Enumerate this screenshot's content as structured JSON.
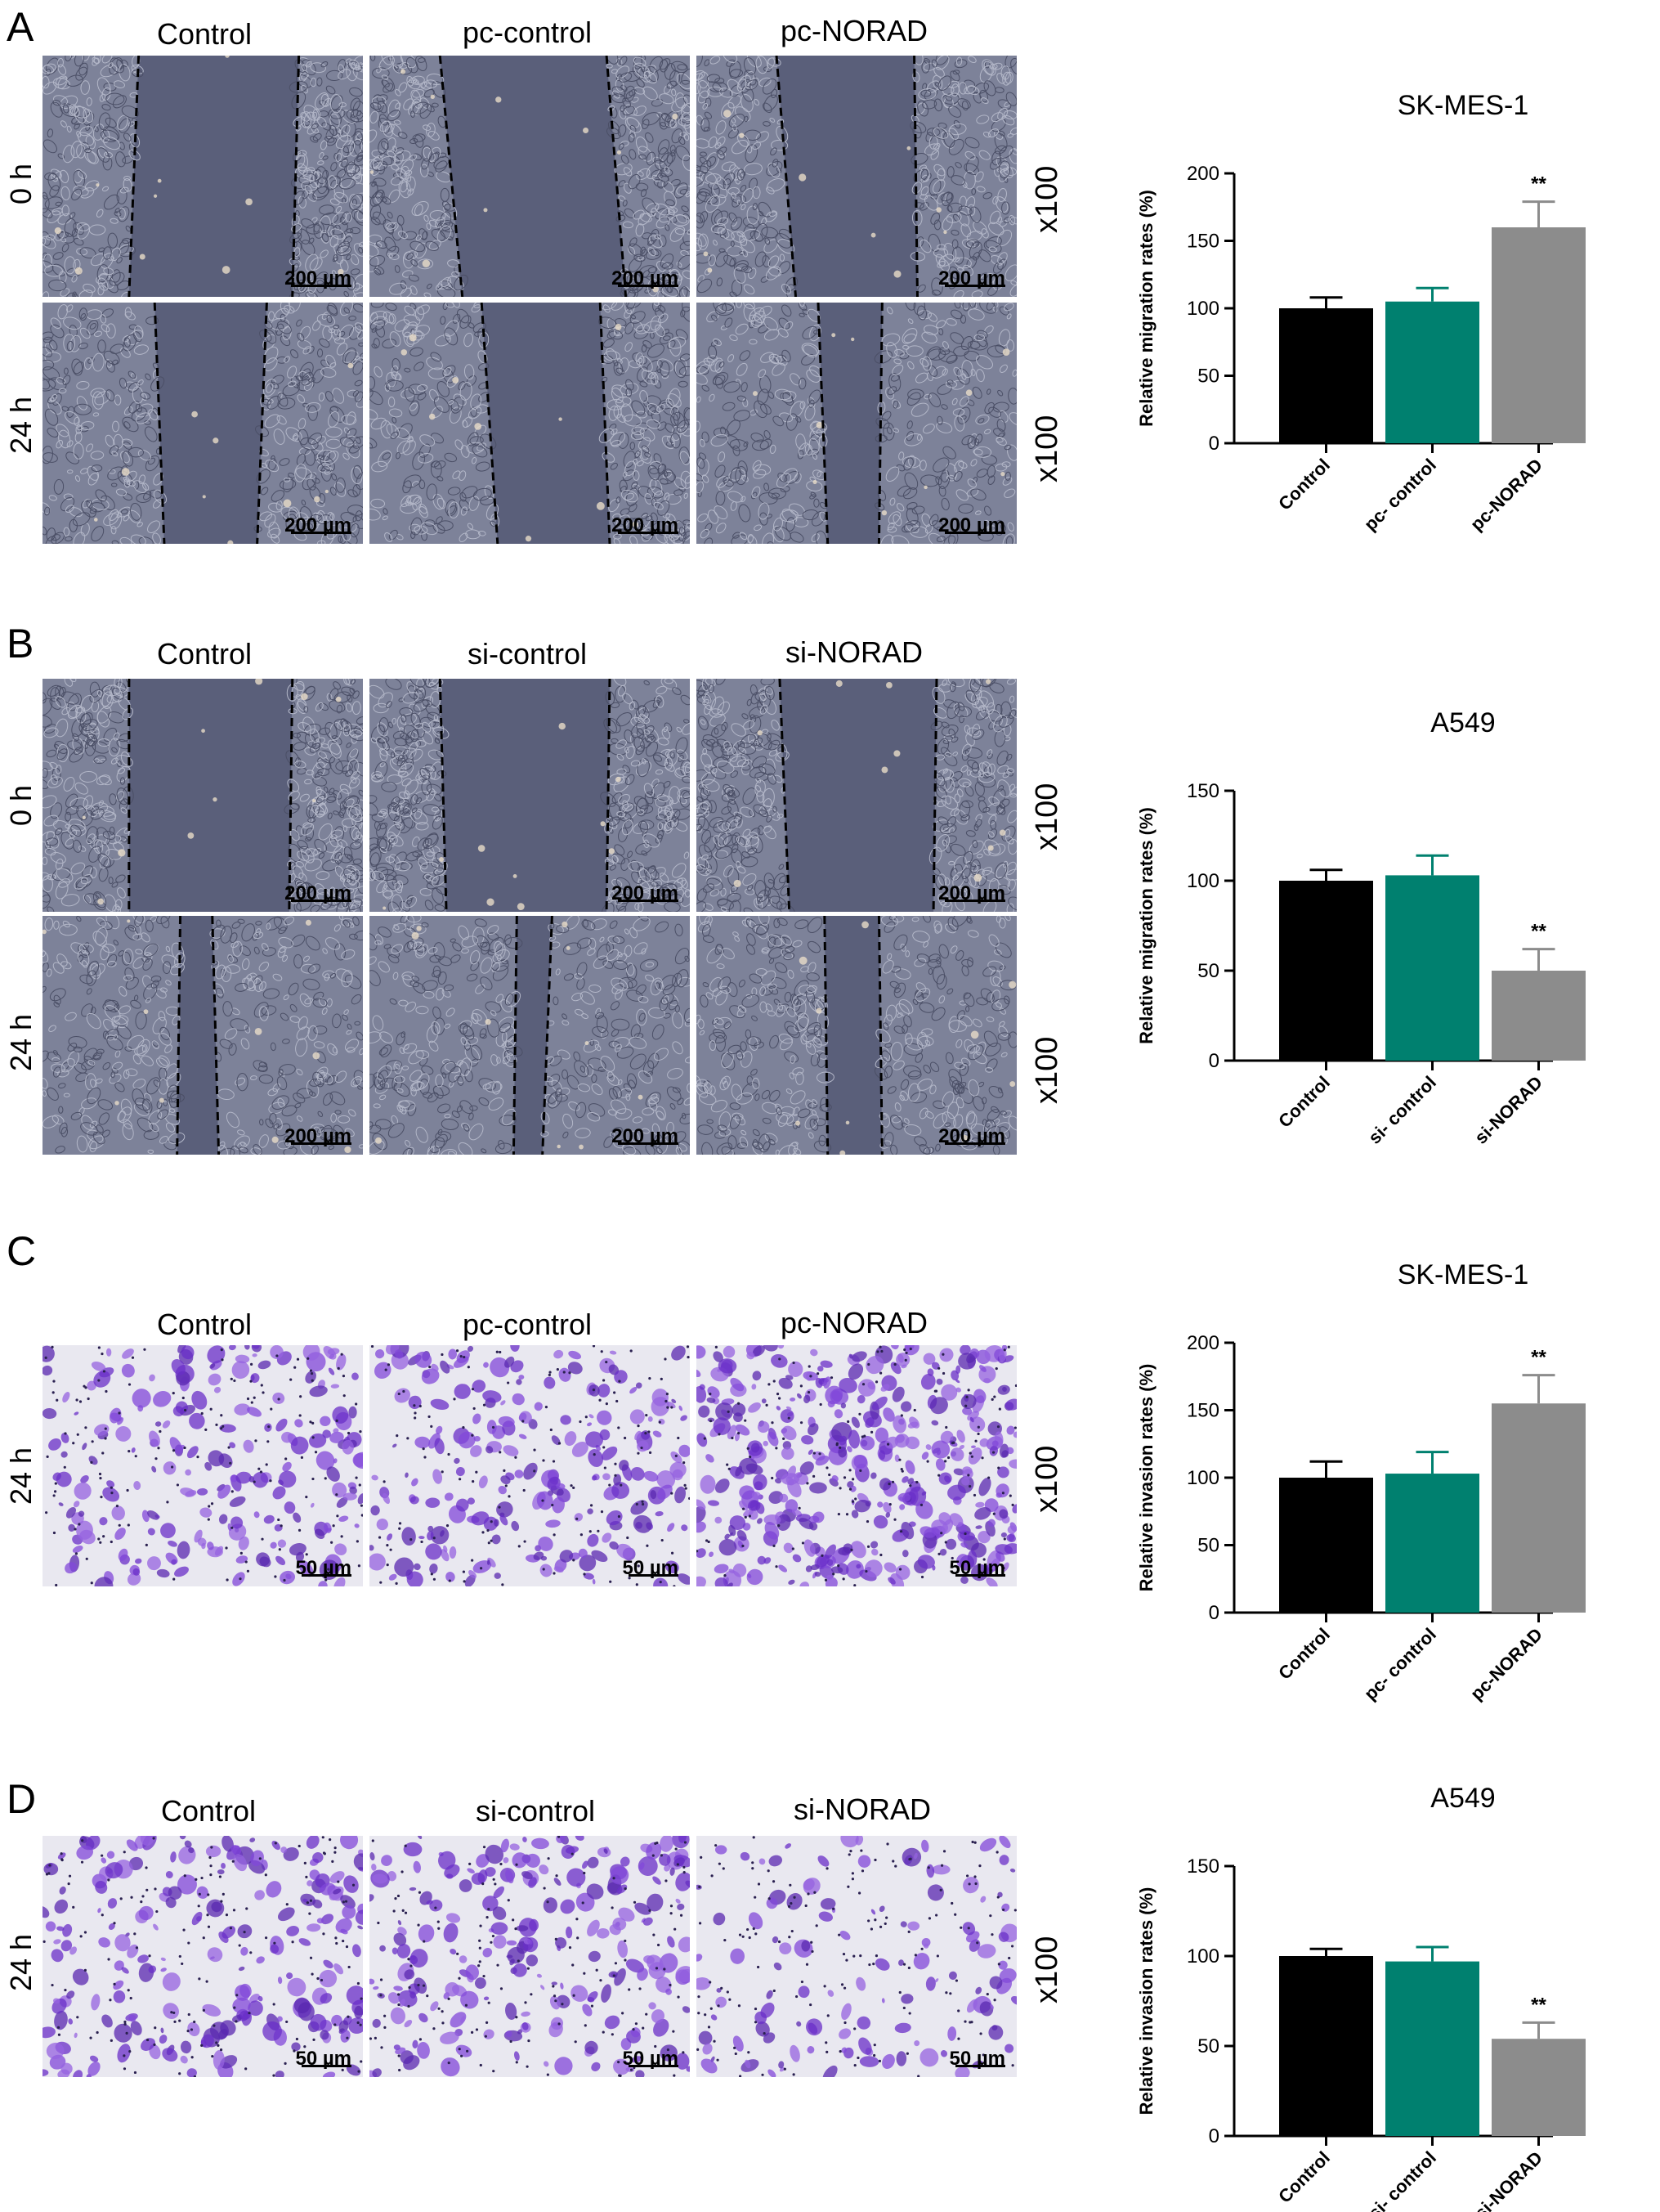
{
  "panels": [
    {
      "letter": "A",
      "assay": "migration",
      "columns": [
        "Control",
        "pc-control",
        "pc-NORAD"
      ],
      "rows": [
        "0 h",
        "24 h"
      ],
      "magnification": [
        "x100",
        "x100"
      ],
      "scale_bar": "200 µm"
    },
    {
      "letter": "B",
      "assay": "migration",
      "columns": [
        "Control",
        "si-control",
        "si-NORAD"
      ],
      "rows": [
        "0 h",
        "24 h"
      ],
      "magnification": [
        "x100",
        "x100"
      ],
      "scale_bar": "200 µm"
    },
    {
      "letter": "C",
      "assay": "invasion",
      "columns": [
        "Control",
        "pc-control",
        "pc-NORAD"
      ],
      "rows": [
        "24 h"
      ],
      "magnification": [
        "x100"
      ],
      "scale_bar": "50 µm"
    },
    {
      "letter": "D",
      "assay": "invasion",
      "columns": [
        "Control",
        "si-control",
        "si-NORAD"
      ],
      "rows": [
        "24 h"
      ],
      "magnification": [
        "x100"
      ],
      "scale_bar": "50 µm"
    }
  ],
  "colors": {
    "control_bar": "#000000",
    "mid_bar": "#00806f",
    "treatment_bar": "#8c8c8c",
    "wound_background": "#5a5f7a",
    "crystal_violet": "#7a3fd0"
  },
  "chart_data": [
    {
      "type": "bar",
      "title": "SK-MES-1",
      "ylabel": "Relative migration rates (%)",
      "categories": [
        "Control",
        "pc- control",
        "pc-NORAD"
      ],
      "values": [
        100,
        105,
        160
      ],
      "errors": [
        8,
        10,
        19
      ],
      "annotations": [
        "",
        "",
        "**"
      ],
      "ylim": [
        0,
        200
      ],
      "yticks": [
        0,
        50,
        100,
        150,
        200
      ]
    },
    {
      "type": "bar",
      "title": "A549",
      "ylabel": "Relative migration rates (%)",
      "categories": [
        "Control",
        "si- control",
        "si-NORAD"
      ],
      "values": [
        100,
        103,
        50
      ],
      "errors": [
        6,
        11,
        12
      ],
      "annotations": [
        "",
        "",
        "**"
      ],
      "ylim": [
        0,
        150
      ],
      "yticks": [
        0,
        50,
        100,
        150
      ]
    },
    {
      "type": "bar",
      "title": "SK-MES-1",
      "ylabel": "Relative invasion rates (%)",
      "categories": [
        "Control",
        "pc- control",
        "pc-NORAD"
      ],
      "values": [
        100,
        103,
        155
      ],
      "errors": [
        12,
        16,
        21
      ],
      "annotations": [
        "",
        "",
        "**"
      ],
      "ylim": [
        0,
        200
      ],
      "yticks": [
        0,
        50,
        100,
        150,
        200
      ]
    },
    {
      "type": "bar",
      "title": "A549",
      "ylabel": "Relative invasion rates (%)",
      "categories": [
        "Control",
        "si- control",
        "si-NORAD"
      ],
      "values": [
        100,
        97,
        54
      ],
      "errors": [
        4,
        8,
        9
      ],
      "annotations": [
        "",
        "",
        "**"
      ],
      "ylim": [
        0,
        150
      ],
      "yticks": [
        0,
        50,
        100,
        150
      ]
    }
  ]
}
